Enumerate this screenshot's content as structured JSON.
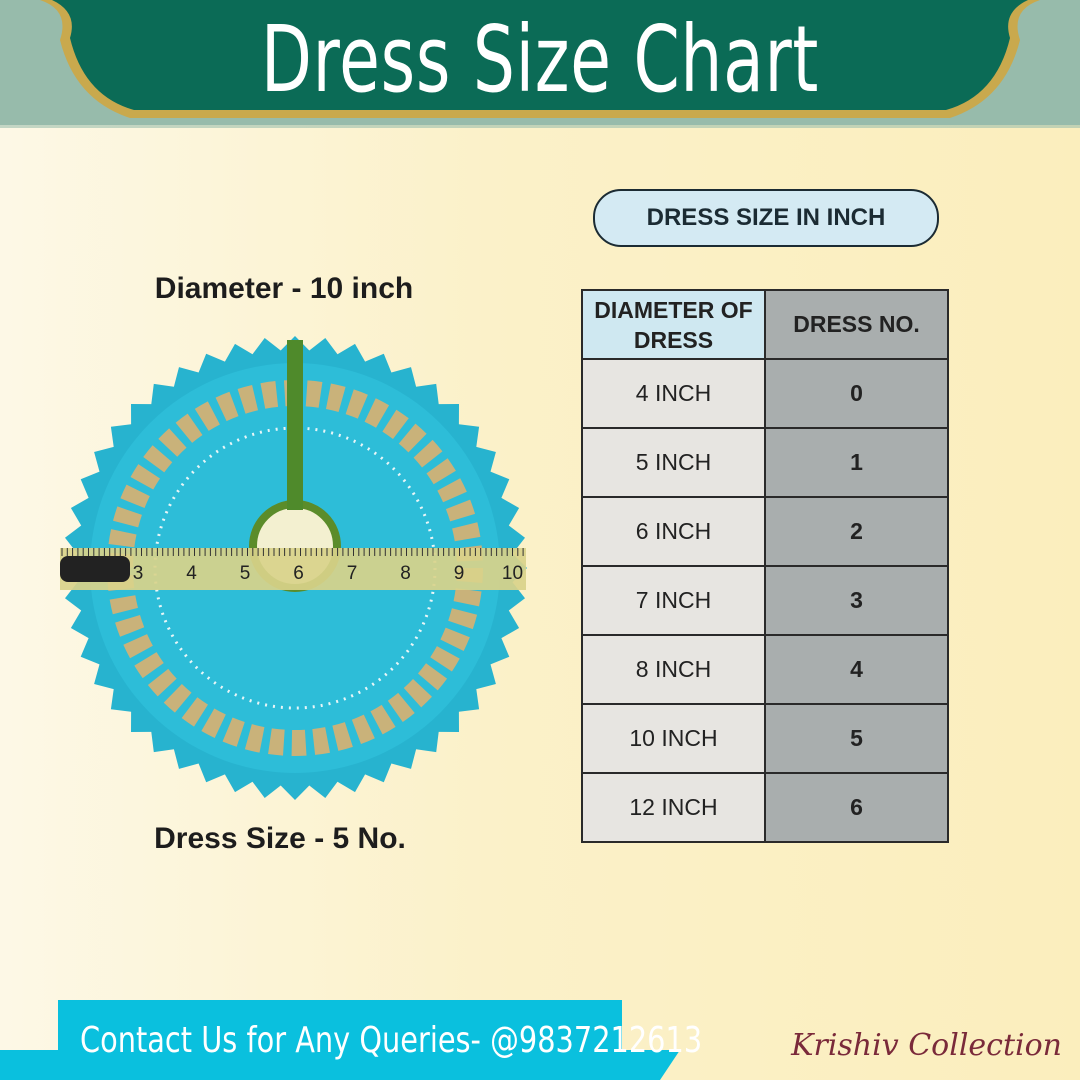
{
  "header": {
    "title": "Dress Size Chart"
  },
  "left": {
    "diameter_label": "Diameter - 10 inch",
    "size_label": "Dress Size - 5 No.",
    "ruler_numbers": [
      3,
      4,
      5,
      6,
      7,
      8,
      9,
      10
    ]
  },
  "table": {
    "caption": "DRESS SIZE IN INCH",
    "headers": [
      "DIAMETER OF DRESS",
      "DRESS NO."
    ],
    "rows": [
      [
        "4 INCH",
        "0"
      ],
      [
        "5 INCH",
        "1"
      ],
      [
        "6 INCH",
        "2"
      ],
      [
        "7 INCH",
        "3"
      ],
      [
        "8 INCH",
        "4"
      ],
      [
        "10 INCH",
        "5"
      ],
      [
        "12 INCH",
        "6"
      ]
    ]
  },
  "footer": {
    "contact": "Contact Us for Any Queries- @9837212613",
    "brand": "Krishiv Collection"
  }
}
